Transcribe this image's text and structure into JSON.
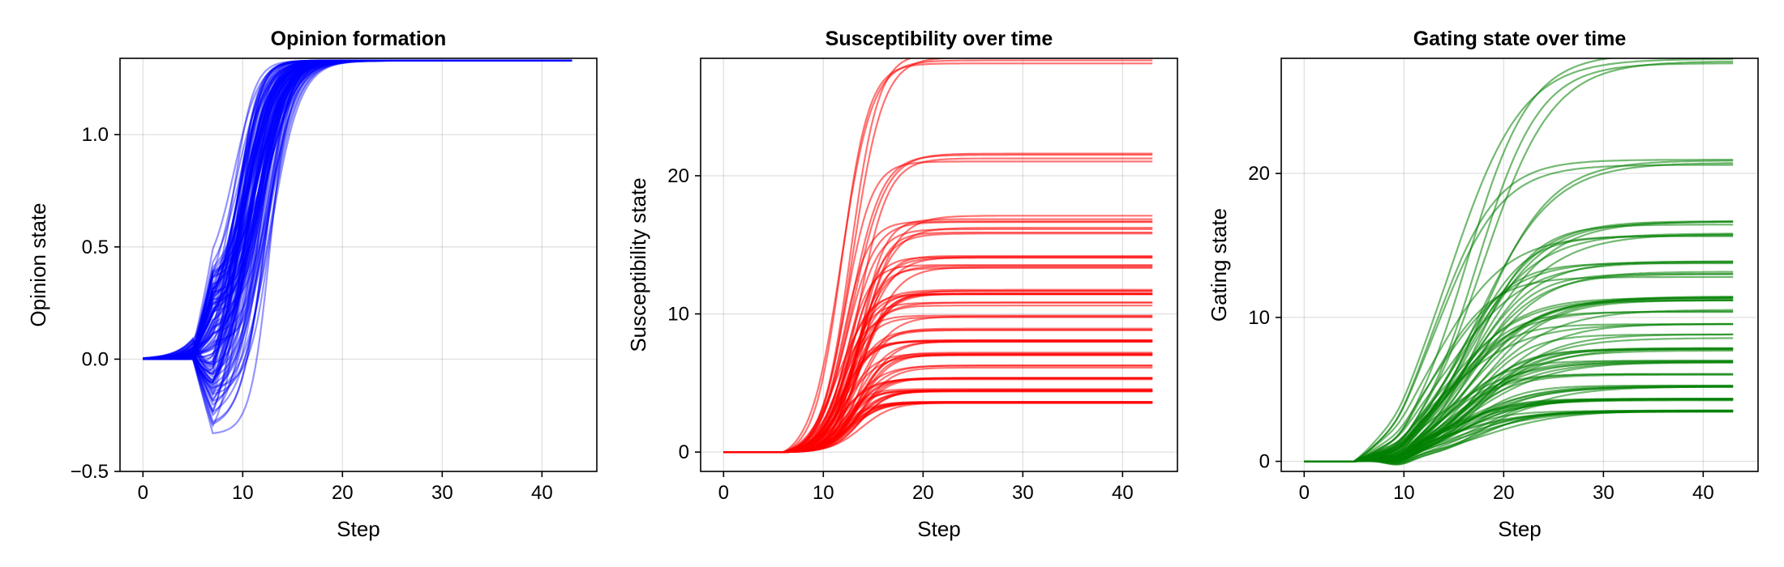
{
  "chart_data": [
    {
      "type": "line",
      "title": "Opinion formation",
      "xlabel": "Step",
      "ylabel": "Opinion state",
      "xlim": [
        -2.3,
        45.5
      ],
      "ylim": [
        -0.5,
        1.34
      ],
      "xticks": [
        0,
        10,
        20,
        30,
        40
      ],
      "yticks": [
        -0.5,
        0.0,
        0.5,
        1.0
      ],
      "ytick_labels": [
        "−0.5",
        "0.0",
        "0.5",
        "1.0"
      ],
      "grid": true,
      "color": "#0000ff",
      "series_opacity": 0.42,
      "x": [
        0,
        43
      ],
      "series_count": 120,
      "series_description": "120 opinion trajectories: flat at 0 until step 5, diverge between about -0.45 and 0.37 around step 7, then rise sigmoidally (midpoints near steps 9-13) to saturate at about 1.33"
    },
    {
      "type": "line",
      "title": "Susceptibility over time",
      "xlabel": "Step",
      "ylabel": "Susceptibility state",
      "xlim": [
        -2.3,
        45.5
      ],
      "ylim": [
        -1.4,
        28.5
      ],
      "xticks": [
        0,
        10,
        20,
        30,
        40
      ],
      "yticks": [
        0,
        10,
        20
      ],
      "ytick_labels": [
        "0",
        "10",
        "20"
      ],
      "grid": true,
      "color": "#ff0000",
      "series_opacity": 0.55,
      "x": [
        0,
        43
      ],
      "final_values": [
        28.5,
        21.3,
        16.9,
        16.0,
        14.2,
        13.4,
        11.6,
        11.6,
        10.7,
        9.8,
        8.9,
        8.0,
        8.0,
        7.1,
        7.1,
        6.2,
        5.3,
        5.3,
        4.5,
        4.5,
        4.4,
        3.6,
        3.6,
        3.6
      ],
      "series_count": 80,
      "series_description": "Trajectories flat at 0 until step 6, rise steeply around steps 10-15 and plateau by step 20 at discrete levels"
    },
    {
      "type": "line",
      "title": "Gating state over time",
      "xlabel": "Step",
      "ylabel": "Gating state",
      "xlim": [
        -2.3,
        45.5
      ],
      "ylim": [
        -0.7,
        28.0
      ],
      "xticks": [
        0,
        10,
        20,
        30,
        40
      ],
      "yticks": [
        0,
        10,
        20
      ],
      "ytick_labels": [
        "0",
        "10",
        "20"
      ],
      "grid": true,
      "color": "#008000",
      "series_opacity": 0.55,
      "x": [
        0,
        43
      ],
      "final_values": [
        28.0,
        20.8,
        16.5,
        15.6,
        13.9,
        13.0,
        11.3,
        11.3,
        10.4,
        9.5,
        8.7,
        7.8,
        7.8,
        6.9,
        6.9,
        6.1,
        5.2,
        5.2,
        4.3,
        4.3,
        4.3,
        3.5,
        3.5,
        3.5
      ],
      "series_count": 80,
      "series_description": "Trajectories flat at 0 until step 5, dip slightly below 0 near step 9, then rise gradually and approach discrete levels by step 43"
    }
  ]
}
